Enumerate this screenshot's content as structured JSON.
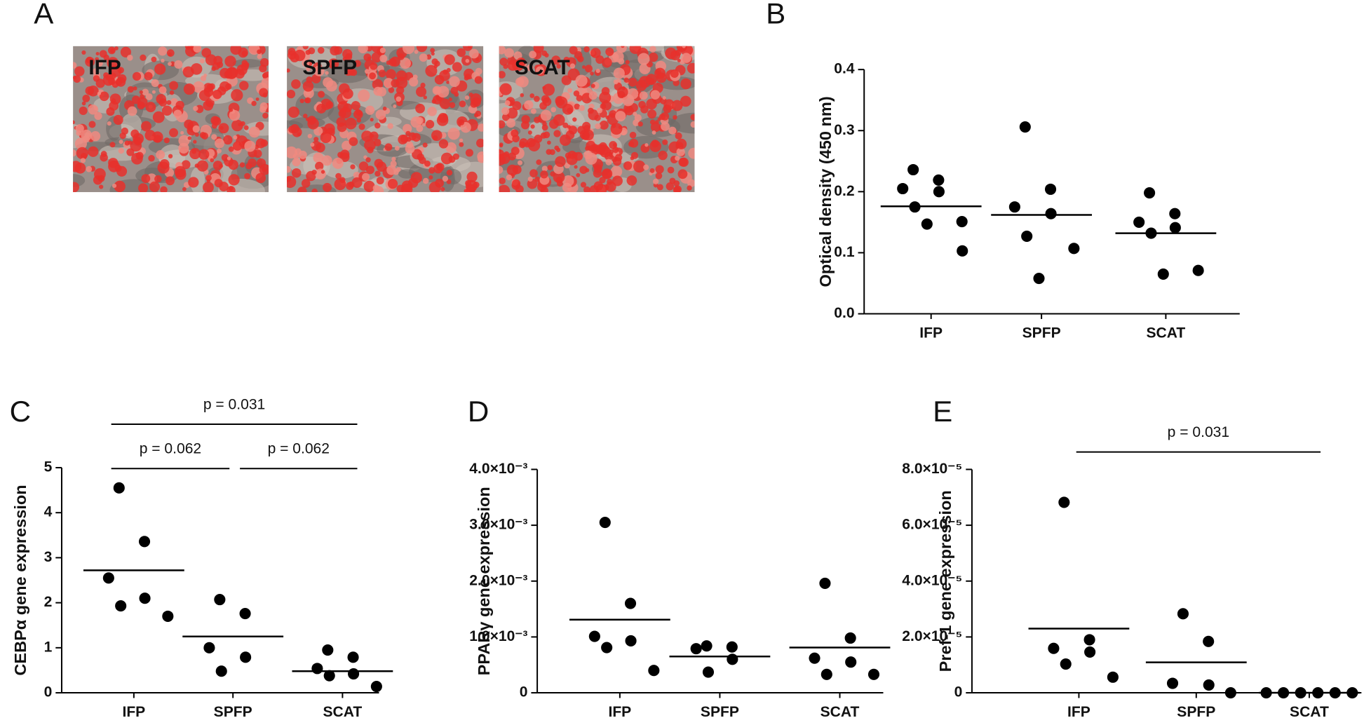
{
  "panel_a": {
    "letter": "A",
    "images": [
      "IFP",
      "SPFP",
      "SCAT"
    ]
  },
  "chart_data": [
    {
      "type": "dot",
      "panel": "B",
      "ylabel": "Optical density (450 nm)",
      "categories": [
        "IFP",
        "SPFP",
        "SCAT"
      ],
      "values": [
        [
          0.236,
          0.219,
          0.205,
          0.2,
          0.175,
          0.151,
          0.147,
          0.103
        ],
        [
          0.306,
          0.204,
          0.175,
          0.164,
          0.127,
          0.107,
          0.058
        ],
        [
          0.198,
          0.164,
          0.15,
          0.141,
          0.132,
          0.071,
          0.065
        ]
      ],
      "means": [
        0.176,
        0.162,
        0.132
      ],
      "ylim": [
        0,
        0.4
      ],
      "yticks": [
        {
          "value": 0,
          "label": "0.0"
        },
        0.1,
        0.2,
        0.3,
        0.4
      ],
      "color": "#000000",
      "annotations": []
    },
    {
      "type": "dot",
      "panel": "C",
      "ylabel": "CEBPα gene expression",
      "categories": [
        "IFP",
        "SPFP",
        "SCAT"
      ],
      "values": [
        [
          4.55,
          3.36,
          2.55,
          2.1,
          1.93,
          1.7
        ],
        [
          2.07,
          1.76,
          1.0,
          0.79,
          0.48
        ],
        [
          0.95,
          0.79,
          0.54,
          0.42,
          0.38,
          0.14
        ]
      ],
      "means": [
        2.72,
        1.25,
        0.48
      ],
      "ylim": [
        0,
        5
      ],
      "yticks": [
        0,
        1,
        2,
        3,
        4,
        5
      ],
      "color": "#000000",
      "annotations": [
        "p = 0.031",
        "p = 0.062",
        "p = 0.062"
      ]
    },
    {
      "type": "dot",
      "panel": "D",
      "ylabel": "PPARγ gene expression",
      "categories": [
        "IFP",
        "SPFP",
        "SCAT"
      ],
      "values": [
        [
          0.00305,
          0.0016,
          0.00101,
          0.00093,
          0.00081,
          0.0004
        ],
        [
          0.00084,
          0.00082,
          0.00079,
          0.0006,
          0.00037
        ],
        [
          0.00196,
          0.00098,
          0.00062,
          0.00055,
          0.00033,
          0.00033
        ]
      ],
      "means": [
        0.00131,
        0.00065,
        0.00081
      ],
      "ylim": [
        0,
        0.004
      ],
      "yticks": [
        0,
        {
          "value": 0.001,
          "label": "1.0×10⁻³"
        },
        {
          "value": 0.002,
          "label": "2.0×10⁻³"
        },
        {
          "value": 0.003,
          "label": "3.0×10⁻³"
        },
        {
          "value": 0.004,
          "label": "4.0×10⁻³"
        }
      ],
      "color": "#000000",
      "annotations": []
    },
    {
      "type": "dot",
      "panel": "E",
      "ylabel": "Pref-1 gene expression",
      "categories": [
        "IFP",
        "SPFP",
        "SCAT"
      ],
      "values": [
        [
          6.82e-05,
          1.9e-05,
          1.59e-05,
          1.46e-05,
          1.03e-05,
          5.6e-06
        ],
        [
          2.83e-05,
          1.84e-05,
          3.4e-06,
          2.8e-06,
          0
        ],
        [
          0,
          0,
          0,
          0,
          0,
          0
        ]
      ],
      "means": [
        2.3e-05,
        1.09e-05,
        0
      ],
      "ylim": [
        0,
        8e-05
      ],
      "yticks": [
        0,
        {
          "value": 2e-05,
          "label": "2.0×10⁻⁵"
        },
        {
          "value": 4e-05,
          "label": "4.0×10⁻⁵"
        },
        {
          "value": 6e-05,
          "label": "6.0×10⁻⁵"
        },
        {
          "value": 8e-05,
          "label": "8.0×10⁻⁵"
        }
      ],
      "color": "#000000",
      "annotations": [
        "p = 0.031"
      ]
    }
  ]
}
